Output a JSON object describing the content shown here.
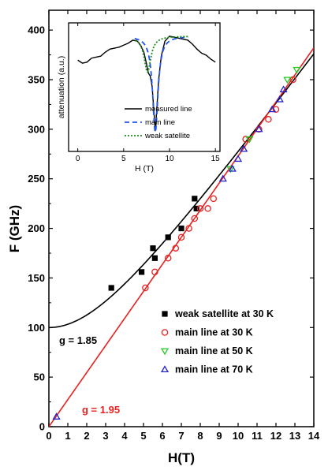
{
  "chart_data": [
    {
      "type": "scatter",
      "xlabel": "H(T)",
      "ylabel": "F (GHz)",
      "xlim": [
        0,
        14
      ],
      "ylim": [
        0,
        420
      ],
      "xticks": [
        0,
        1,
        2,
        3,
        4,
        5,
        6,
        7,
        8,
        9,
        10,
        11,
        12,
        13,
        14
      ],
      "yticks": [
        0,
        50,
        100,
        150,
        200,
        250,
        300,
        350,
        400
      ],
      "legend_position": "lower-right",
      "series": [
        {
          "name": "weak satellite at 30 K",
          "marker": "filled-square",
          "color": "#000000",
          "points": [
            [
              3.3,
              140
            ],
            [
              4.9,
              156
            ],
            [
              5.5,
              180
            ],
            [
              5.6,
              170
            ],
            [
              6.3,
              191
            ],
            [
              7.0,
              200
            ],
            [
              7.7,
              230
            ],
            [
              7.8,
              220
            ]
          ]
        },
        {
          "name": "main line at 30 K",
          "marker": "open-circle",
          "color": "#e8211f",
          "points": [
            [
              5.1,
              140
            ],
            [
              5.6,
              156
            ],
            [
              6.3,
              170
            ],
            [
              6.7,
              180
            ],
            [
              7.0,
              191
            ],
            [
              7.4,
              200
            ],
            [
              7.7,
              210
            ],
            [
              8.0,
              220
            ],
            [
              8.4,
              220
            ],
            [
              8.7,
              230
            ],
            [
              10.4,
              290
            ],
            [
              11.1,
              300
            ],
            [
              11.6,
              310
            ],
            [
              12.0,
              320
            ],
            [
              12.9,
              350
            ]
          ]
        },
        {
          "name": "main line at 50 K",
          "marker": "open-triangle-down",
          "color": "#22cc22",
          "points": [
            [
              9.6,
              260
            ],
            [
              10.6,
              290
            ],
            [
              12.6,
              350
            ],
            [
              13.1,
              360
            ]
          ]
        },
        {
          "name": "main line at 70 K",
          "marker": "open-triangle-up",
          "color": "#2222cc",
          "points": [
            [
              0.4,
              10
            ],
            [
              9.2,
              250
            ],
            [
              9.7,
              260
            ],
            [
              10.0,
              270
            ],
            [
              10.3,
              280
            ],
            [
              11.1,
              300
            ],
            [
              11.8,
              320
            ],
            [
              12.2,
              330
            ],
            [
              12.4,
              340
            ]
          ]
        }
      ],
      "fits": [
        {
          "label": "g = 1.85",
          "color": "#000000",
          "form": "sqrt(F0^2 + (g*13.996*H)^2)",
          "g": 1.85,
          "F0": 100
        },
        {
          "label": "g = 1.95",
          "color": "#e8211f",
          "form": "g*13.996*H",
          "g": 1.95,
          "F0": 0
        }
      ]
    },
    {
      "type": "line",
      "xlabel": "H (T)",
      "ylabel": "attenuation (a.u.)",
      "xlim": [
        -1,
        15.5
      ],
      "xticks": [
        0,
        5,
        10,
        15
      ],
      "legend_position": "lower-right",
      "series": [
        {
          "name": "measured line",
          "color": "#000000",
          "style": "solid",
          "points": [
            [
              0,
              0.66
            ],
            [
              0.5,
              0.63
            ],
            [
              1,
              0.64
            ],
            [
              1.5,
              0.68
            ],
            [
              2,
              0.69
            ],
            [
              2.5,
              0.7
            ],
            [
              3,
              0.74
            ],
            [
              3.5,
              0.77
            ],
            [
              4,
              0.78
            ],
            [
              4.5,
              0.79
            ],
            [
              5,
              0.81
            ],
            [
              5.5,
              0.83
            ],
            [
              6,
              0.86
            ],
            [
              6.5,
              0.85
            ],
            [
              6.9,
              0.8
            ],
            [
              7.2,
              0.74
            ],
            [
              7.5,
              0.62
            ],
            [
              7.7,
              0.53
            ],
            [
              7.9,
              0.5
            ],
            [
              8.1,
              0.4
            ],
            [
              8.3,
              0.15
            ],
            [
              8.45,
              -0.05
            ],
            [
              8.6,
              0.15
            ],
            [
              8.8,
              0.45
            ],
            [
              9.1,
              0.7
            ],
            [
              9.5,
              0.85
            ],
            [
              10,
              0.9
            ],
            [
              10.5,
              0.89
            ],
            [
              11,
              0.88
            ],
            [
              11.5,
              0.87
            ],
            [
              12,
              0.86
            ],
            [
              12.5,
              0.82
            ],
            [
              13,
              0.77
            ],
            [
              13.5,
              0.73
            ],
            [
              14,
              0.71
            ],
            [
              14.5,
              0.67
            ],
            [
              15,
              0.64
            ]
          ]
        },
        {
          "name": "main line",
          "color": "#2255ee",
          "style": "dashed",
          "lorentz": {
            "x0": 8.45,
            "gamma": 0.36,
            "baseline": 0.9,
            "depth": 0.96,
            "from": 6.2,
            "to": 12
          }
        },
        {
          "name": "weak satellite",
          "color": "#1a8c1a",
          "style": "dotted",
          "lorentz": {
            "x0": 7.6,
            "gamma": 0.45,
            "baseline": 0.9,
            "depth": 0.36,
            "from": 6.3,
            "to": 12
          }
        }
      ]
    }
  ]
}
